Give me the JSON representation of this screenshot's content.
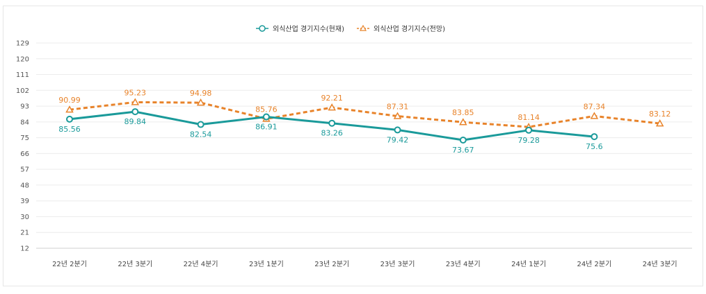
{
  "chart_data": {
    "type": "line",
    "title": "",
    "xlabel": "",
    "ylabel": "",
    "categories": [
      "22년 2분기",
      "22년 3분기",
      "22년 4분기",
      "23년 1분기",
      "23년 2분기",
      "23년 3분기",
      "23년 4분기",
      "24년 1분기",
      "24년 2분기",
      "24년 3분기"
    ],
    "y_ticks": [
      "129",
      "120",
      "111",
      "102",
      "93",
      "84",
      "75",
      "66",
      "57",
      "48",
      "39",
      "30",
      "21",
      "12"
    ],
    "ylim": [
      12,
      129
    ],
    "grid": true,
    "legend_position": "top-center",
    "series": [
      {
        "name": "외식산업 경기지수(현재)",
        "color": "#1a9a9a",
        "style": "solid",
        "marker": "circle",
        "values": [
          85.56,
          89.84,
          82.54,
          86.91,
          83.26,
          79.42,
          73.67,
          79.28,
          75.6,
          null
        ],
        "labels": [
          "85.56",
          "89.84",
          "82.54",
          "86.91",
          "83.26",
          "79.42",
          "73.67",
          "79.28",
          "75.6",
          ""
        ]
      },
      {
        "name": "외식산업 경기지수(전망)",
        "color": "#e8832a",
        "style": "dashed",
        "marker": "triangle",
        "values": [
          90.99,
          95.23,
          94.98,
          85.76,
          92.21,
          87.31,
          83.85,
          81.14,
          87.34,
          83.12
        ],
        "labels": [
          "90.99",
          "95.23",
          "94.98",
          "85.76",
          "92.21",
          "87.31",
          "83.85",
          "81.14",
          "87.34",
          "83.12"
        ]
      }
    ]
  }
}
